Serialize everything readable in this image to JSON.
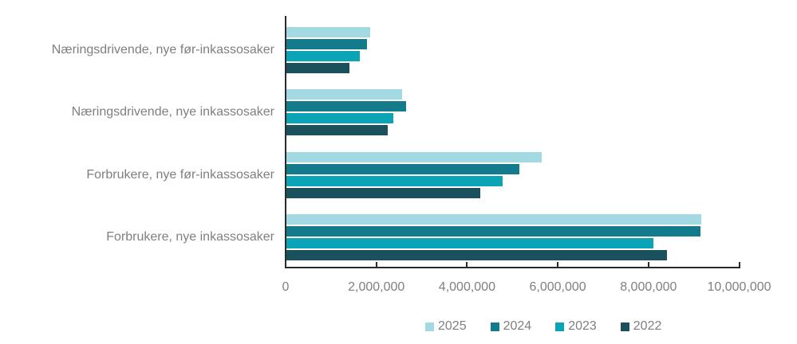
{
  "chart_data": {
    "type": "bar",
    "orientation": "horizontal",
    "title": "",
    "categories": [
      "Næringsdrivende, nye før-inkassosaker",
      "Næringsdrivende, nye inkassosaker",
      "Forbrukere, nye før-inkassosaker",
      "Forbrukere, nye inkassosaker"
    ],
    "series": [
      {
        "name": "2025",
        "color": "#a2d9e2",
        "values": [
          1870000,
          2560000,
          5650000,
          9170000
        ]
      },
      {
        "name": "2024",
        "color": "#137b8b",
        "values": [
          1800000,
          2650000,
          5150000,
          9140000
        ]
      },
      {
        "name": "2023",
        "color": "#0ba3b6",
        "values": [
          1630000,
          2370000,
          4790000,
          8100000
        ]
      },
      {
        "name": "2022",
        "color": "#1b515c",
        "values": [
          1400000,
          2250000,
          4290000,
          8410000
        ]
      }
    ],
    "x_axis": {
      "min": 0,
      "max": 10000000,
      "tick_step": 2000000,
      "tick_labels": [
        "0",
        "2,000,000",
        "4,000,000",
        "6,000,000",
        "8,000,000",
        "10,000,000"
      ]
    },
    "legend": {
      "position": "bottom",
      "entries": [
        "2025",
        "2024",
        "2023",
        "2022"
      ]
    },
    "grid": false,
    "axis_color": "#2b2b2b",
    "text_color": "#7f7f7f"
  }
}
